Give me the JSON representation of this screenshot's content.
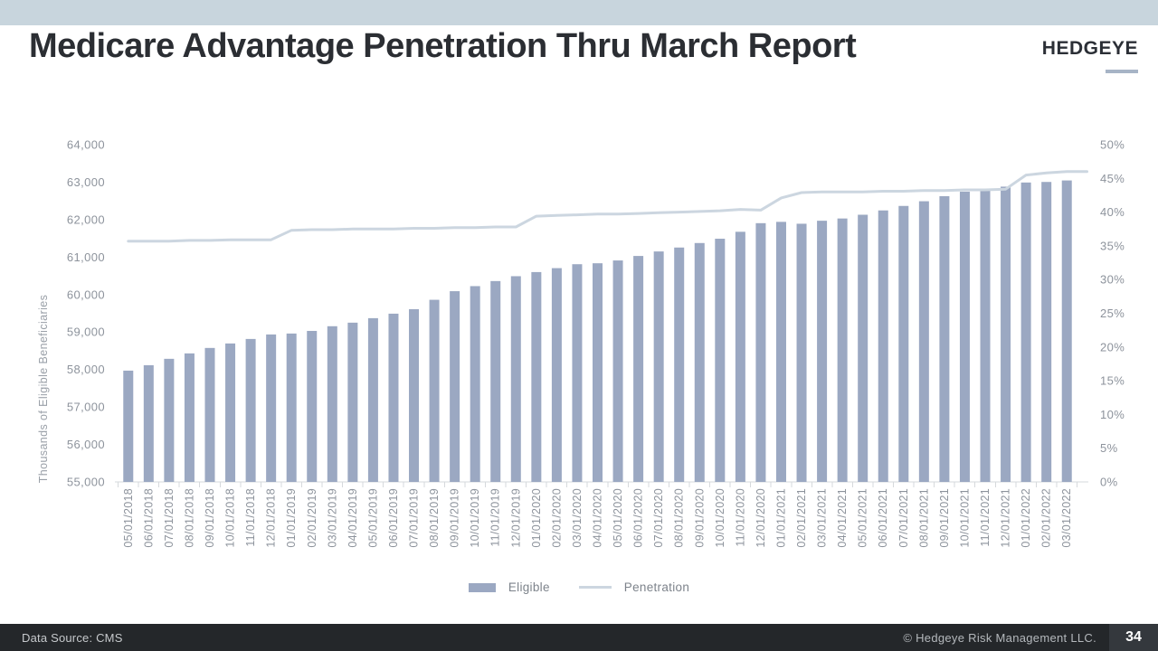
{
  "header": {
    "title": "Medicare Advantage Penetration Thru March Report",
    "logo": "HEDGEYE"
  },
  "chart_data": {
    "type": "combo",
    "title": "Medicare Advantage Penetration Thru March Report",
    "grid": false,
    "legend_position": "bottom",
    "categories": [
      "05/01/2018",
      "06/01/2018",
      "07/01/2018",
      "08/01/2018",
      "09/01/2018",
      "10/01/2018",
      "11/01/2018",
      "12/01/2018",
      "01/01/2019",
      "02/01/2019",
      "03/01/2019",
      "04/01/2019",
      "05/01/2019",
      "06/01/2019",
      "07/01/2019",
      "08/01/2019",
      "09/01/2019",
      "10/01/2019",
      "11/01/2019",
      "12/01/2019",
      "01/01/2020",
      "02/01/2020",
      "03/01/2020",
      "04/01/2020",
      "05/01/2020",
      "06/01/2020",
      "07/01/2020",
      "08/01/2020",
      "09/01/2020",
      "10/01/2020",
      "11/01/2020",
      "12/01/2020",
      "01/01/2021",
      "02/01/2021",
      "03/01/2021",
      "04/01/2021",
      "05/01/2021",
      "06/01/2021",
      "07/01/2021",
      "08/01/2021",
      "09/01/2021",
      "10/01/2021",
      "11/01/2021",
      "12/01/2021",
      "01/01/2022",
      "02/01/2022",
      "03/01/2022"
    ],
    "series": [
      {
        "name": "Eligible",
        "type": "bar",
        "axis": "left",
        "color": "#9ba8c2",
        "values": [
          57970,
          58115,
          58285,
          58430,
          58575,
          58695,
          58815,
          58935,
          58960,
          59030,
          59155,
          59250,
          59370,
          59490,
          59610,
          59860,
          60090,
          60225,
          60360,
          60490,
          60600,
          60705,
          60810,
          60835,
          60910,
          61030,
          61150,
          61255,
          61375,
          61490,
          61675,
          61905,
          61940,
          61890,
          61970,
          62030,
          62130,
          62245,
          62365,
          62490,
          62625,
          62745,
          62785,
          62880,
          62990,
          63005,
          63045
        ]
      },
      {
        "name": "Penetration",
        "type": "line",
        "axis": "right",
        "color": "#ccd6e0",
        "values": [
          35.7,
          35.7,
          35.7,
          35.8,
          35.8,
          35.9,
          35.9,
          35.9,
          37.3,
          37.4,
          37.4,
          37.5,
          37.5,
          37.5,
          37.6,
          37.6,
          37.7,
          37.7,
          37.8,
          37.8,
          39.4,
          39.5,
          39.6,
          39.7,
          39.7,
          39.8,
          39.9,
          40.0,
          40.1,
          40.2,
          40.4,
          40.3,
          42.1,
          42.9,
          43.0,
          43.0,
          43.0,
          43.1,
          43.1,
          43.2,
          43.2,
          43.3,
          43.3,
          43.4,
          45.5,
          45.8,
          46.0
        ]
      }
    ],
    "left_axis": {
      "title": "Thousands of Eligible Beneficiaries",
      "min": 55000,
      "max": 64000,
      "tick_step": 1000,
      "tick_labels": [
        "64,000",
        "63,000",
        "62,000",
        "61,000",
        "60,000",
        "59,000",
        "58,000",
        "57,000",
        "56,000",
        "55,000"
      ]
    },
    "right_axis": {
      "min": 0,
      "max": 50,
      "tick_step": 5,
      "tick_labels": [
        "50%",
        "45%",
        "40%",
        "35%",
        "30%",
        "25%",
        "20%",
        "15%",
        "10%",
        "5%",
        "0%"
      ]
    }
  },
  "legend": {
    "items": [
      {
        "label": "Eligible",
        "swatch": "bar"
      },
      {
        "label": "Penetration",
        "swatch": "line"
      }
    ]
  },
  "footer": {
    "left": "Data Source: CMS",
    "right": "© Hedgeye Risk Management LLC.",
    "page": "34"
  },
  "colors": {
    "top_strip": "#c8d5dd",
    "bar": "#9ba8c2",
    "line": "#ccd6e0",
    "axis_text": "#8d939c",
    "axis_line": "#d6d9dc",
    "footer_bg": "#24272a",
    "title_text": "#2b2e33"
  }
}
